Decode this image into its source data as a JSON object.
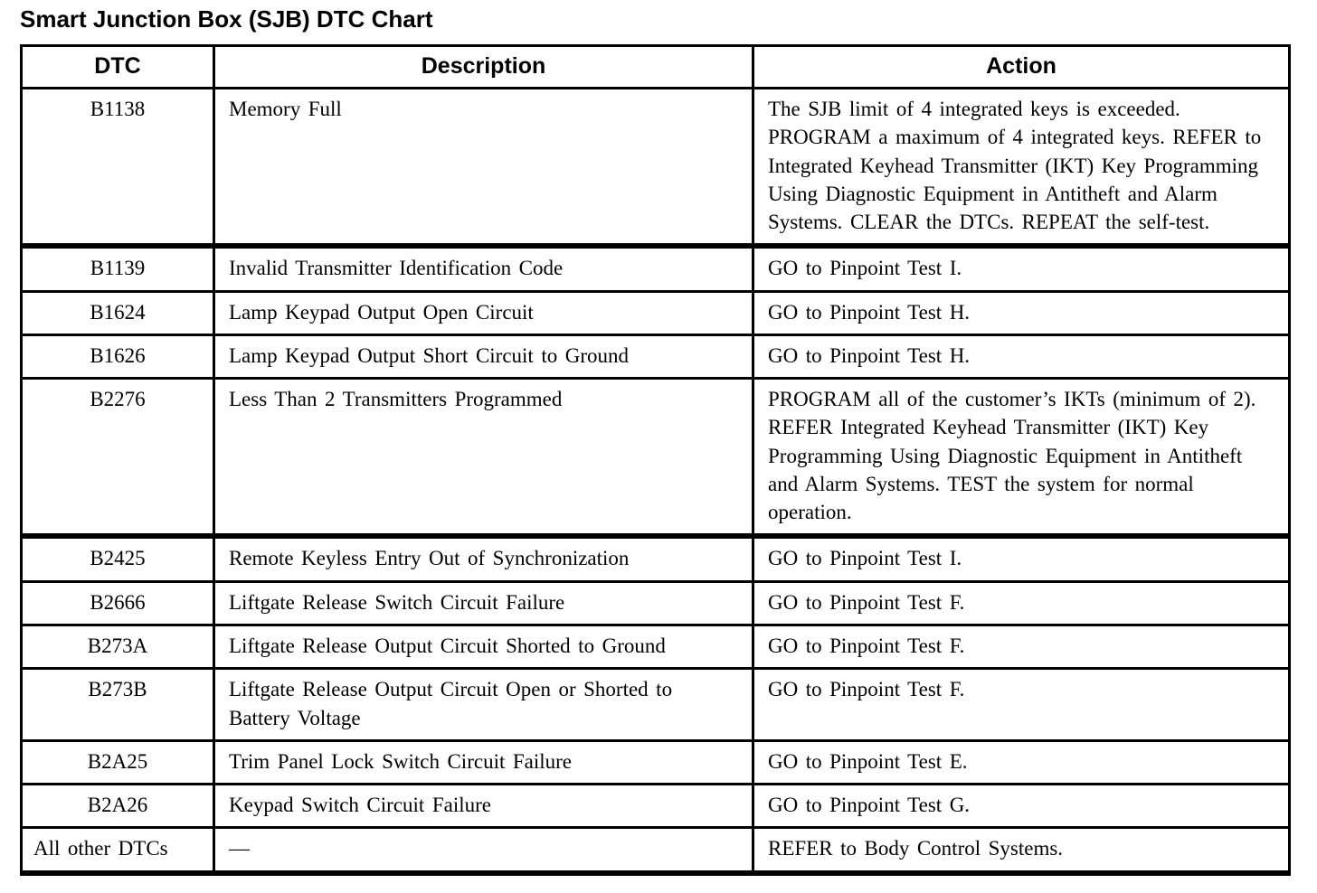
{
  "title": "Smart Junction Box (SJB) DTC Chart",
  "colors": {
    "border": "#000000",
    "text": "#000000",
    "background": "#ffffff"
  },
  "table": {
    "headers": [
      "DTC",
      "Description",
      "Action"
    ],
    "rows": [
      {
        "dtc": "B1138",
        "description": "Memory Full",
        "action": "The SJB limit of 4 integrated keys is exceeded. PROGRAM a maximum of 4 integrated keys. REFER to Integrated Keyhead Transmitter (IKT) Key Programming Using Diagnostic Equipment in Antitheft and Alarm Systems. CLEAR the DTCs. REPEAT the self-test.",
        "group_end": true
      },
      {
        "dtc": "B1139",
        "description": "Invalid Transmitter Identification Code",
        "action": "GO to Pinpoint Test I."
      },
      {
        "dtc": "B1624",
        "description": "Lamp Keypad Output Open Circuit",
        "action": "GO to Pinpoint Test H."
      },
      {
        "dtc": "B1626",
        "description": "Lamp Keypad Output Short Circuit to Ground",
        "action": "GO to Pinpoint Test H."
      },
      {
        "dtc": "B2276",
        "description": "Less Than 2 Transmitters Programmed",
        "action": "PROGRAM all of the customer’s IKTs (minimum of 2). REFER Integrated Keyhead Transmitter (IKT) Key Programming Using Diagnostic Equipment in Antitheft and Alarm Systems. TEST the system for normal operation.",
        "group_end": true
      },
      {
        "dtc": "B2425",
        "description": "Remote Keyless Entry Out of Synchronization",
        "action": "GO to Pinpoint Test I."
      },
      {
        "dtc": "B2666",
        "description": "Liftgate Release Switch Circuit Failure",
        "action": "GO to Pinpoint Test F."
      },
      {
        "dtc": "B273A",
        "description": "Liftgate Release Output Circuit Shorted to Ground",
        "action": "GO to Pinpoint Test F."
      },
      {
        "dtc": "B273B",
        "description": "Liftgate Release Output Circuit Open or Shorted to Battery Voltage",
        "action": "GO to Pinpoint Test F."
      },
      {
        "dtc": "B2A25",
        "description": "Trim Panel Lock Switch Circuit Failure",
        "action": "GO to Pinpoint Test E."
      },
      {
        "dtc": "B2A26",
        "description": "Keypad Switch Circuit Failure",
        "action": "GO to Pinpoint Test G."
      },
      {
        "dtc": "All other DTCs",
        "description": "—",
        "action": "REFER to Body Control Systems.",
        "dtc_align": "left"
      }
    ]
  }
}
